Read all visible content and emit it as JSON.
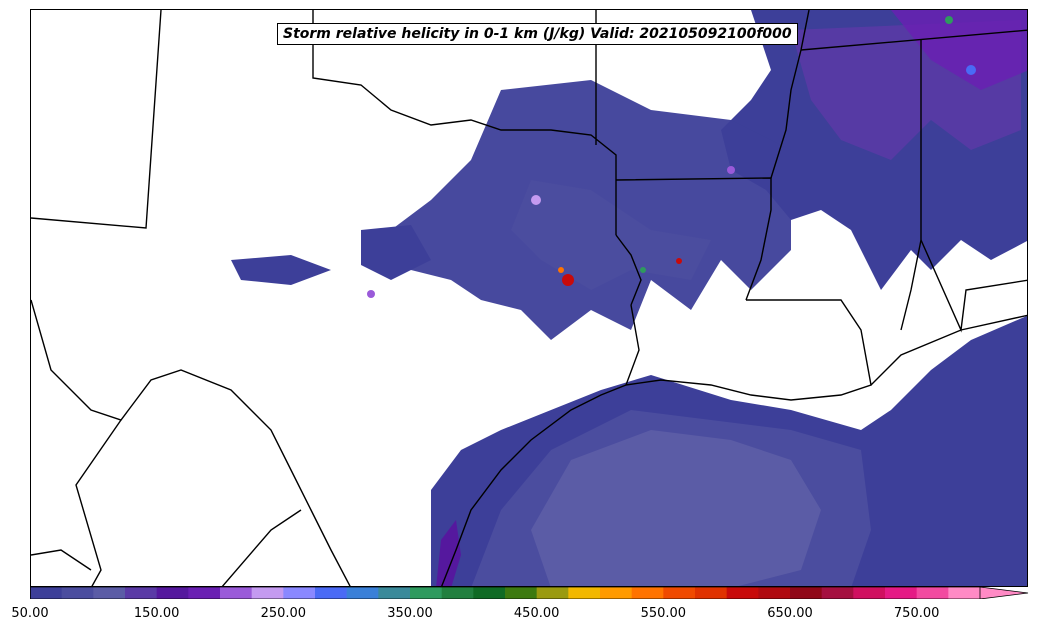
{
  "title": "Storm relative helicity in 0-1 km (J/kg) Valid: 202105092100f000",
  "colorbar": {
    "min": 50,
    "max": 800,
    "step": 25,
    "ticks": [
      "50.00",
      "150.00",
      "250.00",
      "350.00",
      "450.00",
      "550.00",
      "650.00",
      "750.00"
    ],
    "tick_values": [
      50,
      150,
      250,
      350,
      450,
      550,
      650,
      750
    ],
    "colors": [
      "#3d3f99",
      "#4b4d9f",
      "#5b5ca6",
      "#5a3aa6",
      "#55189e",
      "#6a1fb3",
      "#9a5ad9",
      "#c49af0",
      "#8a88ff",
      "#4a6af5",
      "#3a80d8",
      "#3a8a9a",
      "#2e9a5e",
      "#22803f",
      "#106b25",
      "#3d7a10",
      "#9a9a10",
      "#f2b800",
      "#ff9a00",
      "#ff7300",
      "#f04a00",
      "#e03200",
      "#c80a0a",
      "#b00a10",
      "#900818",
      "#a51040",
      "#d01060",
      "#e51a85",
      "#f24aa0",
      "#ff8ac5"
    ],
    "extend": "max"
  }
}
